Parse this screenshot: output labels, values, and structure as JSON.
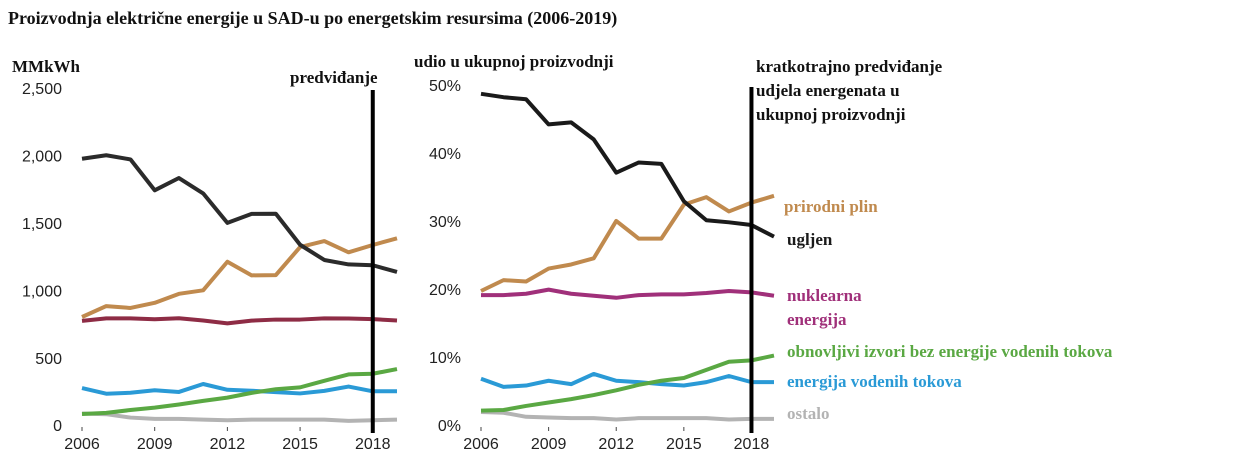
{
  "title": "Proizvodnja električne energije u SAD-u po energetskim resursima (2006-2019)",
  "chart_data": [
    {
      "type": "line",
      "y_label": "MMkWh",
      "annotation": "predviđanje",
      "forecast_x": 2018,
      "x": [
        2006,
        2007,
        2008,
        2009,
        2010,
        2011,
        2012,
        2013,
        2014,
        2015,
        2016,
        2017,
        2018,
        2019
      ],
      "xlim": [
        2006,
        2019
      ],
      "xticks": [
        2006,
        2009,
        2012,
        2015,
        2018
      ],
      "ylim": [
        0,
        2500
      ],
      "yticks": [
        0,
        500,
        {
          "value": 1000,
          "label": "1,000"
        },
        {
          "value": 1500,
          "label": "1,500"
        },
        {
          "value": 2000,
          "label": "2,000"
        },
        {
          "value": 2500,
          "label": "2,500"
        }
      ],
      "series": [
        {
          "color": "#b3b3b3",
          "values": [
            100,
            95,
            70,
            60,
            60,
            55,
            50,
            55,
            55,
            55,
            55,
            45,
            50,
            55
          ]
        },
        {
          "color": "#2a9ad6",
          "values": [
            289,
            247,
            254,
            273,
            260,
            319,
            276,
            269,
            259,
            249,
            268,
            300,
            265,
            265
          ]
        },
        {
          "color": "#5aa843",
          "values": [
            96,
            105,
            126,
            144,
            167,
            194,
            218,
            253,
            280,
            294,
            343,
            390,
            395,
            430
          ]
        },
        {
          "color": "#8e2c45",
          "values": [
            787,
            806,
            806,
            799,
            807,
            790,
            769,
            789,
            797,
            797,
            806,
            805,
            800,
            790
          ]
        },
        {
          "color": "#c08a4e",
          "values": [
            816,
            897,
            883,
            921,
            988,
            1014,
            1226,
            1125,
            1127,
            1335,
            1379,
            1296,
            1350,
            1400
          ]
        },
        {
          "color": "#2b2b2b",
          "values": [
            1990,
            2016,
            1985,
            1756,
            1847,
            1733,
            1514,
            1581,
            1582,
            1352,
            1239,
            1206,
            1200,
            1150
          ]
        }
      ]
    },
    {
      "type": "line",
      "y_label": "udio u ukupnoj proizvodnji",
      "annotation": "kratkotrajno predviđanje udjela energenata u ukupnoj proizvodnji",
      "forecast_x": 2018,
      "x": [
        2006,
        2007,
        2008,
        2009,
        2010,
        2011,
        2012,
        2013,
        2014,
        2015,
        2016,
        2017,
        2018,
        2019
      ],
      "xlim": [
        2006,
        2019
      ],
      "xticks": [
        2006,
        2009,
        2012,
        2015,
        2018
      ],
      "ylim": [
        0,
        50
      ],
      "yticks": [
        {
          "value": 0,
          "label": "0%"
        },
        {
          "value": 10,
          "label": "10%"
        },
        {
          "value": 20,
          "label": "20%"
        },
        {
          "value": 30,
          "label": "30%"
        },
        {
          "value": 40,
          "label": "40%"
        },
        {
          "value": 50,
          "label": "50%"
        }
      ],
      "series": [
        {
          "name": "ostalo",
          "color": "#b3b3b3",
          "values": [
            2.2,
            2.1,
            1.5,
            1.4,
            1.3,
            1.3,
            1.1,
            1.3,
            1.3,
            1.3,
            1.3,
            1.1,
            1.2,
            1.2
          ]
        },
        {
          "name": "energija vodenih tokova",
          "color": "#2a9ad6",
          "values": [
            7.1,
            5.9,
            6.1,
            6.8,
            6.3,
            7.8,
            6.8,
            6.6,
            6.3,
            6.1,
            6.6,
            7.5,
            6.6,
            6.6
          ]
        },
        {
          "name": "obnovljivi izvori bez energije vodenih tokova",
          "color": "#5aa843",
          "values": [
            2.4,
            2.5,
            3.1,
            3.6,
            4.1,
            4.7,
            5.4,
            6.2,
            6.8,
            7.2,
            8.4,
            9.6,
            9.8,
            10.5
          ]
        },
        {
          "name": "nuklearna energija",
          "color": "#a0307a",
          "values": [
            19.4,
            19.4,
            19.6,
            20.2,
            19.6,
            19.3,
            19.0,
            19.4,
            19.5,
            19.5,
            19.7,
            20.0,
            19.8,
            19.3
          ]
        },
        {
          "name": "prirodni plin",
          "color": "#c08a4e",
          "values": [
            20.0,
            21.6,
            21.4,
            23.3,
            23.9,
            24.8,
            30.3,
            27.7,
            27.7,
            32.7,
            33.8,
            31.7,
            33.0,
            34.0
          ]
        },
        {
          "name": "ugljen",
          "color": "#1a1a1a",
          "values": [
            49.0,
            48.5,
            48.2,
            44.5,
            44.8,
            42.3,
            37.4,
            38.9,
            38.7,
            33.2,
            30.4,
            30.1,
            29.7,
            28.0
          ]
        }
      ]
    }
  ]
}
